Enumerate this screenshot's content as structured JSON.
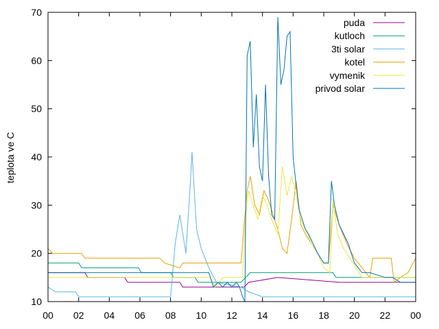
{
  "chart_data": {
    "type": "line",
    "title": "",
    "xlabel": "",
    "ylabel": "teplota ve C",
    "xlim": [
      0,
      24
    ],
    "ylim": [
      10,
      70
    ],
    "x_ticks": [
      "00",
      "02",
      "04",
      "06",
      "08",
      "10",
      "12",
      "14",
      "16",
      "18",
      "20",
      "22",
      "00"
    ],
    "y_ticks": [
      10,
      20,
      30,
      40,
      50,
      60,
      70
    ],
    "grid": false,
    "legend_position": "top-right",
    "series": [
      {
        "name": "puda",
        "color": "#940094",
        "x": [
          0,
          2.4,
          2.6,
          5.0,
          5.2,
          7.0,
          8.6,
          8.8,
          10.5,
          12.8,
          13.1,
          15.0,
          19.0,
          24.0
        ],
        "y": [
          16,
          16,
          15,
          15,
          14,
          14,
          14,
          13,
          13,
          13,
          14,
          15,
          14,
          14
        ]
      },
      {
        "name": "kutloch",
        "color": "#009e73",
        "x": [
          0,
          2.0,
          2.2,
          5.9,
          6.1,
          8.0,
          8.2,
          9.6,
          9.8,
          12.6,
          13.2,
          18.6,
          18.8,
          24.0
        ],
        "y": [
          18,
          18,
          17,
          17,
          16,
          16,
          15,
          15,
          14,
          14,
          16,
          16,
          15,
          15
        ]
      },
      {
        "name": "3ti solar",
        "color": "#56b4e9",
        "x": [
          0,
          0.5,
          1.8,
          2.0,
          8.0,
          8.3,
          8.6,
          9.0,
          9.3,
          9.4,
          9.7,
          10.0,
          10.5,
          11.0,
          12.6,
          13.1,
          14.0,
          24.0
        ],
        "y": [
          13,
          12,
          12,
          11,
          11,
          22,
          28,
          20,
          35,
          41,
          25,
          21,
          17,
          14,
          13,
          12,
          11,
          11
        ]
      },
      {
        "name": "kotel",
        "color": "#e69f00",
        "x": [
          0,
          0.3,
          2.2,
          2.4,
          7.3,
          7.6,
          8.6,
          8.8,
          12.6,
          12.8,
          13.0,
          13.2,
          13.5,
          13.8,
          14.1,
          14.4,
          14.7,
          15.0,
          15.3,
          15.6,
          15.9,
          16.2,
          16.5,
          16.8,
          17.2,
          17.6,
          18.0,
          18.3,
          18.6,
          19.0,
          19.5,
          20.0,
          20.5,
          21.0,
          21.2,
          22.4,
          22.6,
          23.0,
          23.5,
          24.0
        ],
        "y": [
          21,
          20,
          20,
          19,
          19,
          18,
          17,
          18,
          18,
          26,
          33,
          36,
          30,
          28,
          33,
          31,
          28,
          25,
          21,
          20,
          27,
          35,
          26,
          24,
          22,
          20,
          18,
          18,
          30,
          26,
          22,
          19,
          17,
          15,
          19,
          19,
          14,
          15,
          16,
          19
        ]
      },
      {
        "name": "vymenik",
        "color": "#f0e442",
        "x": [
          0,
          10.6,
          10.9,
          11.4,
          12.7,
          12.9,
          13.1,
          13.4,
          13.7,
          14.0,
          14.3,
          14.6,
          15.0,
          15.3,
          15.6,
          15.9,
          16.2,
          16.5,
          16.8,
          17.2,
          17.6,
          18.0,
          18.4,
          18.6,
          18.9,
          19.3,
          19.7,
          20.1,
          20.5,
          24.0
        ],
        "y": [
          15,
          15,
          13,
          15,
          15,
          28,
          33,
          30,
          27,
          32,
          30,
          27,
          24,
          38,
          32,
          36,
          32,
          27,
          25,
          22,
          20,
          17,
          16,
          31,
          24,
          21,
          19,
          17,
          15,
          15
        ]
      },
      {
        "name": "privod solar",
        "color": "#0072b2",
        "x": [
          0,
          10.5,
          10.8,
          11.1,
          11.4,
          11.7,
          12.0,
          12.3,
          12.5,
          12.7,
          12.85,
          13.0,
          13.2,
          13.4,
          13.6,
          13.8,
          14.0,
          14.2,
          14.4,
          14.6,
          14.8,
          15.0,
          15.2,
          15.4,
          15.6,
          15.8,
          16.0,
          16.2,
          16.4,
          16.6,
          16.8,
          17.0,
          17.3,
          17.6,
          18.0,
          18.3,
          18.5,
          18.7,
          19.0,
          19.3,
          19.6,
          20.0,
          20.5,
          21.0,
          22.0,
          22.5,
          23.0,
          24.0
        ],
        "y": [
          16,
          16,
          13,
          14,
          13,
          14,
          13,
          14,
          13,
          11,
          10,
          61,
          64,
          42,
          53,
          38,
          35,
          55,
          36,
          28,
          27,
          69,
          55,
          58,
          65,
          66,
          40,
          34,
          29,
          27,
          25,
          24,
          22,
          20,
          18,
          18,
          35,
          30,
          26,
          24,
          22,
          18,
          16,
          16,
          15,
          15,
          14,
          14
        ]
      }
    ]
  }
}
